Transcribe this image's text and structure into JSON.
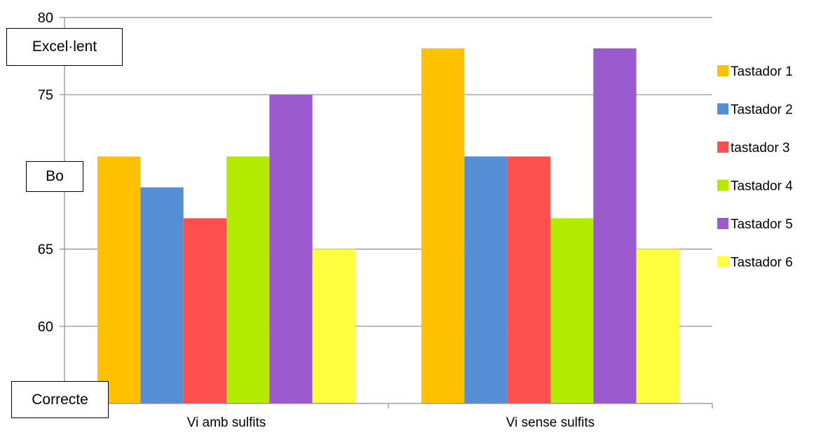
{
  "chart_data": {
    "type": "bar",
    "categories": [
      "Vi amb sulfits",
      "Vi sense sulfits"
    ],
    "series": [
      {
        "name": "Tastador 1",
        "color": "#FFC000",
        "values": [
          71,
          78
        ]
      },
      {
        "name": "Tastador 2",
        "color": "#558ED5",
        "values": [
          69,
          71
        ]
      },
      {
        "name": "tastador 3",
        "color": "#FF5050",
        "values": [
          67,
          71
        ]
      },
      {
        "name": "Tastador 4",
        "color": "#B2EB00",
        "values": [
          71,
          67
        ]
      },
      {
        "name": "Tastador 5",
        "color": "#9B5BCE",
        "values": [
          75,
          78
        ]
      },
      {
        "name": "Tastador 6",
        "color": "#FFFF40",
        "values": [
          65,
          65
        ]
      }
    ],
    "yticks": [
      60,
      65,
      75,
      80
    ],
    "ylim": [
      55,
      80
    ],
    "grid": true,
    "legend_position": "right",
    "annotations": [
      "Excel·lent",
      "Bo",
      "Correcte"
    ]
  }
}
